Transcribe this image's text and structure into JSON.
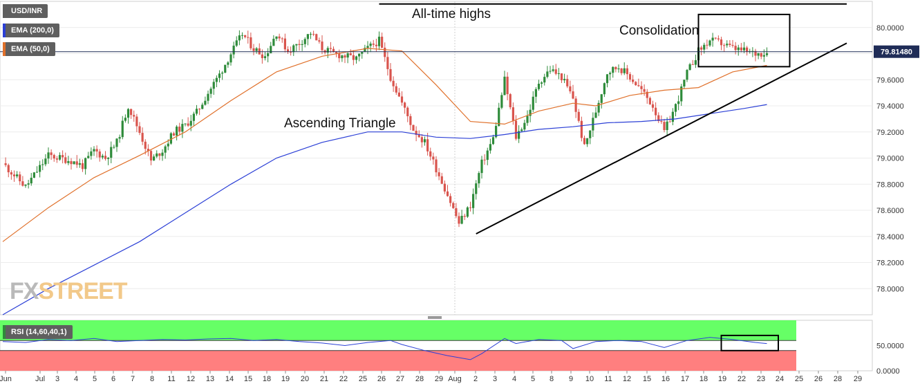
{
  "legend": {
    "symbol": "USD/INR",
    "ema200": "EMA (200,0)",
    "ema50": "EMA (50,0)",
    "rsi": "RSI (14,60,40,1)"
  },
  "watermark": {
    "left": "FX",
    "right": "STREET"
  },
  "colors": {
    "ema200": "#2b3fd6",
    "ema50": "#e0702a",
    "up": "#2e8b3a",
    "down": "#d9544d",
    "rsi_line": "#2b3fd6",
    "rsi_upper_zone": "#66ff66",
    "rsi_lower_zone": "#ff7f7f",
    "price_tag_bg": "#1f2c57"
  },
  "chart_data": [
    {
      "type": "candlestick",
      "title": "",
      "current_price_label": "79.81480",
      "current_price": 79.8148,
      "ylim": [
        77.8,
        80.2
      ],
      "y_ticks": [
        "78.0000",
        "78.2000",
        "78.4000",
        "78.6000",
        "78.8000",
        "79.0000",
        "79.2000",
        "79.4000",
        "79.6000",
        "79.8000",
        "80.0000"
      ],
      "x_ticks": [
        "Jun",
        "Jul",
        "3",
        "4",
        "5",
        "6",
        "7",
        "8",
        "11",
        "12",
        "13",
        "14",
        "15",
        "18",
        "19",
        "20",
        "21",
        "22",
        "25",
        "26",
        "27",
        "28",
        "29",
        "Aug",
        "2",
        "3",
        "4",
        "5",
        "8",
        "9",
        "10",
        "11",
        "12",
        "15",
        "16",
        "17",
        "18",
        "19",
        "22",
        "23",
        "24",
        "25",
        "26",
        "28",
        "29"
      ],
      "annotations": [
        "All-time highs",
        "Consolidation",
        "Ascending Triangle"
      ],
      "close_path": [
        [
          0,
          78.96
        ],
        [
          2,
          78.78
        ],
        [
          4,
          79.02
        ],
        [
          6,
          78.98
        ],
        [
          7,
          78.94
        ],
        [
          8,
          79.06
        ],
        [
          9,
          79.0
        ],
        [
          10,
          79.12
        ],
        [
          11,
          79.4
        ],
        [
          12,
          79.2
        ],
        [
          13,
          78.98
        ],
        [
          14,
          79.06
        ],
        [
          15,
          79.2
        ],
        [
          16,
          79.25
        ],
        [
          17,
          79.35
        ],
        [
          18,
          79.5
        ],
        [
          19,
          79.64
        ],
        [
          20,
          79.8
        ],
        [
          21,
          79.95
        ],
        [
          22,
          79.84
        ],
        [
          23,
          79.78
        ],
        [
          24,
          79.96
        ],
        [
          25,
          79.82
        ],
        [
          26,
          79.88
        ],
        [
          27,
          79.96
        ],
        [
          28,
          79.84
        ],
        [
          29,
          79.8
        ],
        [
          30,
          79.78
        ],
        [
          31,
          79.76
        ],
        [
          32,
          79.84
        ],
        [
          33,
          79.9
        ],
        [
          34,
          79.62
        ],
        [
          35,
          79.42
        ],
        [
          36,
          79.22
        ],
        [
          37,
          79.12
        ],
        [
          38,
          78.92
        ],
        [
          39,
          78.72
        ],
        [
          40,
          78.5
        ],
        [
          41,
          78.64
        ],
        [
          42,
          78.96
        ],
        [
          43,
          79.15
        ],
        [
          44,
          79.6
        ],
        [
          45,
          79.16
        ],
        [
          46,
          79.32
        ],
        [
          47,
          79.58
        ],
        [
          48,
          79.68
        ],
        [
          49,
          79.62
        ],
        [
          50,
          79.46
        ],
        [
          51,
          79.08
        ],
        [
          52,
          79.36
        ],
        [
          53,
          79.66
        ],
        [
          54,
          79.7
        ],
        [
          55,
          79.62
        ],
        [
          56,
          79.52
        ],
        [
          57,
          79.4
        ],
        [
          58,
          79.2
        ],
        [
          59,
          79.4
        ],
        [
          60,
          79.65
        ],
        [
          61,
          79.82
        ],
        [
          62,
          79.9
        ],
        [
          63,
          79.88
        ],
        [
          64,
          79.84
        ],
        [
          65,
          79.82
        ],
        [
          66,
          79.8
        ],
        [
          67,
          79.81
        ]
      ],
      "ema200_path": [
        [
          0,
          77.8
        ],
        [
          4,
          78.0
        ],
        [
          8,
          78.18
        ],
        [
          12,
          78.36
        ],
        [
          16,
          78.58
        ],
        [
          20,
          78.8
        ],
        [
          24,
          79.0
        ],
        [
          28,
          79.12
        ],
        [
          32,
          79.2
        ],
        [
          35,
          79.2
        ],
        [
          38,
          79.16
        ],
        [
          41,
          79.15
        ],
        [
          44,
          79.18
        ],
        [
          47,
          79.22
        ],
        [
          50,
          79.24
        ],
        [
          53,
          79.27
        ],
        [
          56,
          79.28
        ],
        [
          59,
          79.3
        ],
        [
          62,
          79.34
        ],
        [
          65,
          79.38
        ],
        [
          67,
          79.41
        ]
      ],
      "ema50_path": [
        [
          0,
          78.36
        ],
        [
          4,
          78.62
        ],
        [
          8,
          78.85
        ],
        [
          12,
          79.02
        ],
        [
          16,
          79.2
        ],
        [
          20,
          79.44
        ],
        [
          24,
          79.66
        ],
        [
          28,
          79.78
        ],
        [
          32,
          79.84
        ],
        [
          35,
          79.82
        ],
        [
          38,
          79.56
        ],
        [
          41,
          79.28
        ],
        [
          44,
          79.26
        ],
        [
          47,
          79.36
        ],
        [
          50,
          79.42
        ],
        [
          52,
          79.4
        ],
        [
          55,
          79.48
        ],
        [
          58,
          79.52
        ],
        [
          61,
          79.54
        ],
        [
          64,
          79.66
        ],
        [
          67,
          79.71
        ]
      ],
      "trendlines": [
        {
          "name": "all-time-high",
          "from": [
            33,
            80.18
          ],
          "to": [
            74,
            80.18
          ]
        },
        {
          "name": "ascending-support",
          "from": [
            41.5,
            78.42
          ],
          "to": [
            74,
            79.88
          ]
        }
      ],
      "consolidation_box": {
        "x": [
          61,
          69
        ],
        "y": [
          79.7,
          80.1
        ]
      }
    },
    {
      "type": "line",
      "title": "RSI (14,60,40,1)",
      "ylim": [
        0,
        100
      ],
      "y_ticks": [
        "0.0000",
        "50.0000"
      ],
      "zones": [
        {
          "from": 60,
          "to": 100,
          "color": "upper"
        },
        {
          "from": 0,
          "to": 40,
          "color": "lower"
        }
      ],
      "values": [
        [
          0,
          58
        ],
        [
          2,
          56
        ],
        [
          4,
          62
        ],
        [
          6,
          60
        ],
        [
          8,
          64
        ],
        [
          10,
          58
        ],
        [
          12,
          60
        ],
        [
          14,
          62
        ],
        [
          16,
          61
        ],
        [
          18,
          63
        ],
        [
          20,
          64
        ],
        [
          22,
          60
        ],
        [
          24,
          62
        ],
        [
          26,
          58
        ],
        [
          28,
          55
        ],
        [
          30,
          50
        ],
        [
          32,
          56
        ],
        [
          34,
          60
        ],
        [
          35,
          52
        ],
        [
          37,
          40
        ],
        [
          39,
          30
        ],
        [
          41,
          22
        ],
        [
          42,
          34
        ],
        [
          44,
          64
        ],
        [
          45,
          54
        ],
        [
          47,
          62
        ],
        [
          49,
          60
        ],
        [
          50,
          44
        ],
        [
          52,
          58
        ],
        [
          54,
          60
        ],
        [
          56,
          58
        ],
        [
          58,
          46
        ],
        [
          60,
          60
        ],
        [
          62,
          66
        ],
        [
          64,
          62
        ],
        [
          66,
          56
        ],
        [
          67,
          54
        ]
      ],
      "box": {
        "x": [
          63,
          68
        ],
        "y": [
          40,
          70
        ]
      }
    }
  ]
}
